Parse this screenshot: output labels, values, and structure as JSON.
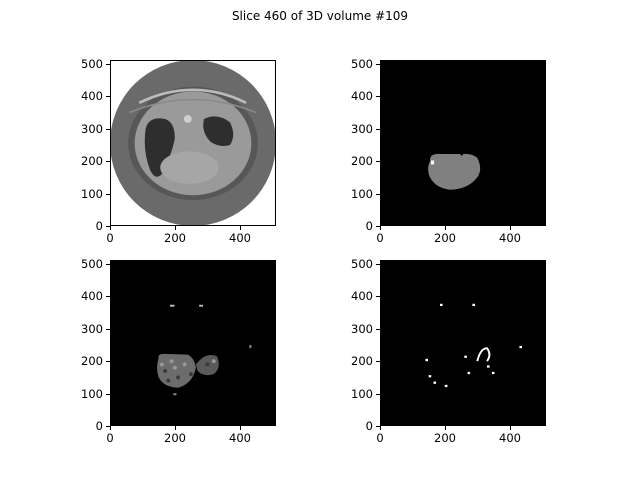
{
  "figure": {
    "title": "Slice 460 of 3D volume #109"
  },
  "panels": [
    {
      "name": "ct-slice-panel",
      "content": "ct-image"
    },
    {
      "name": "segmentation-mask-panel",
      "content": "mask"
    },
    {
      "name": "masked-intensity-panel",
      "content": "masked-texture"
    },
    {
      "name": "binary-highlight-panel",
      "content": "binary-specks"
    }
  ],
  "axes": {
    "y_ticks": [
      "500",
      "400",
      "300",
      "200",
      "100",
      "0"
    ],
    "y_values": [
      500,
      400,
      300,
      200,
      100,
      0
    ],
    "x_ticks": [
      "0",
      "200",
      "400"
    ],
    "x_values": [
      0,
      200,
      400
    ],
    "range": [
      0,
      512
    ]
  },
  "colors": {
    "background": "#000000",
    "ct_ring": "#6a6a6a",
    "ct_body": "#9a9a9a",
    "lung": "#2e2e2e",
    "mask": "#808080"
  }
}
